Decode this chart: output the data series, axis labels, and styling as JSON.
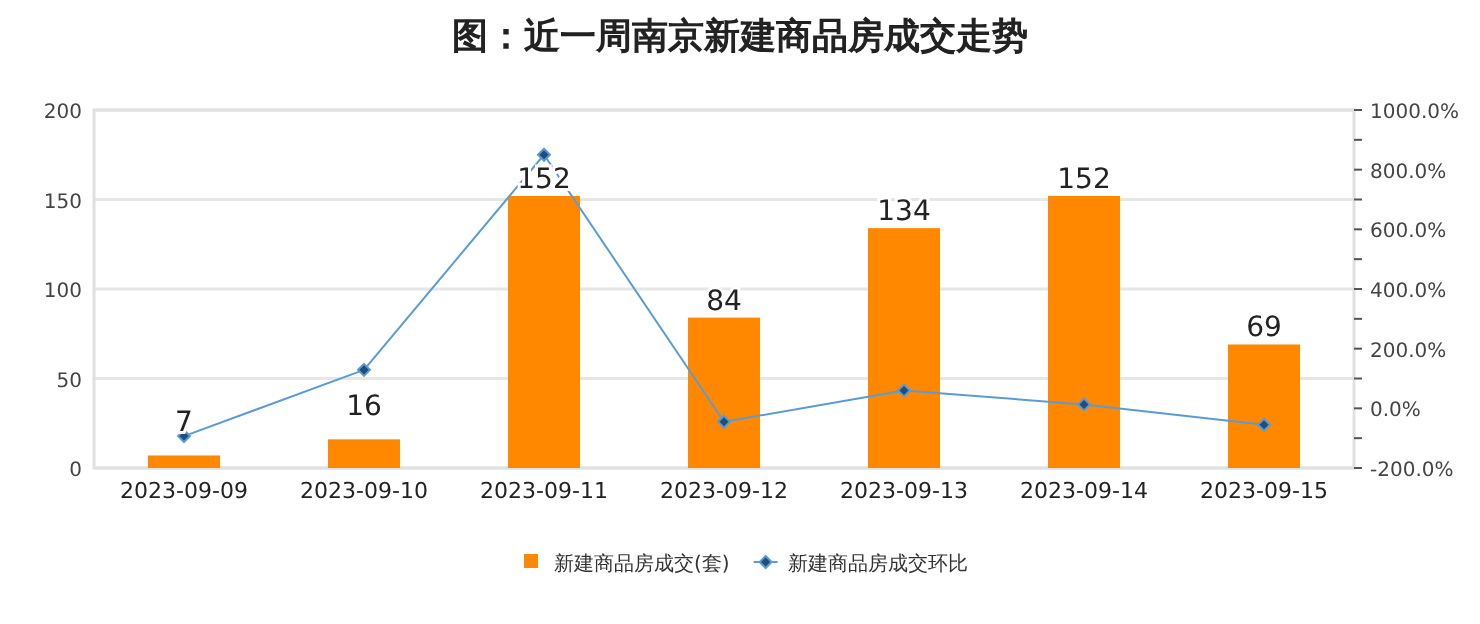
{
  "chart_data": {
    "type": "bar",
    "title": "图：近一周南京新建商品房成交走势",
    "categories": [
      "2023-09-09",
      "2023-09-10",
      "2023-09-11",
      "2023-09-12",
      "2023-09-13",
      "2023-09-14",
      "2023-09-15"
    ],
    "series": [
      {
        "name": "新建商品房成交(套)",
        "color": "#ff8800",
        "values": [
          7,
          16,
          152,
          84,
          134,
          152,
          69
        ],
        "value_labels": [
          "7",
          "16",
          "152",
          "84",
          "134",
          "152",
          "69"
        ]
      },
      {
        "name": "新建商品房成交环比",
        "type": "line",
        "axis": "y2",
        "color": "#5b9bd5",
        "marker": "diamond",
        "values": [
          -93,
          129,
          850,
          -45,
          60,
          13,
          -55
        ]
      }
    ],
    "ylim": [
      0,
      200
    ],
    "yticks": [
      0,
      50,
      100,
      150,
      200
    ],
    "y2lim": [
      -200,
      1000
    ],
    "y2ticks": [
      {
        "value": -200,
        "label": "-200.0%"
      },
      {
        "value": -100,
        "label": null
      },
      {
        "value": 0,
        "label": "0.0%"
      },
      {
        "value": 100,
        "label": null
      },
      {
        "value": 200,
        "label": "200.0%"
      },
      {
        "value": 300,
        "label": null
      },
      {
        "value": 400,
        "label": "400.0%"
      },
      {
        "value": 500,
        "label": null
      },
      {
        "value": 600,
        "label": "600.0%"
      },
      {
        "value": 700,
        "label": null
      },
      {
        "value": 800,
        "label": "800.0%"
      },
      {
        "value": 900,
        "label": null
      },
      {
        "value": 1000,
        "label": "1000.0%"
      }
    ],
    "grid": "y",
    "legend": "bottom"
  }
}
